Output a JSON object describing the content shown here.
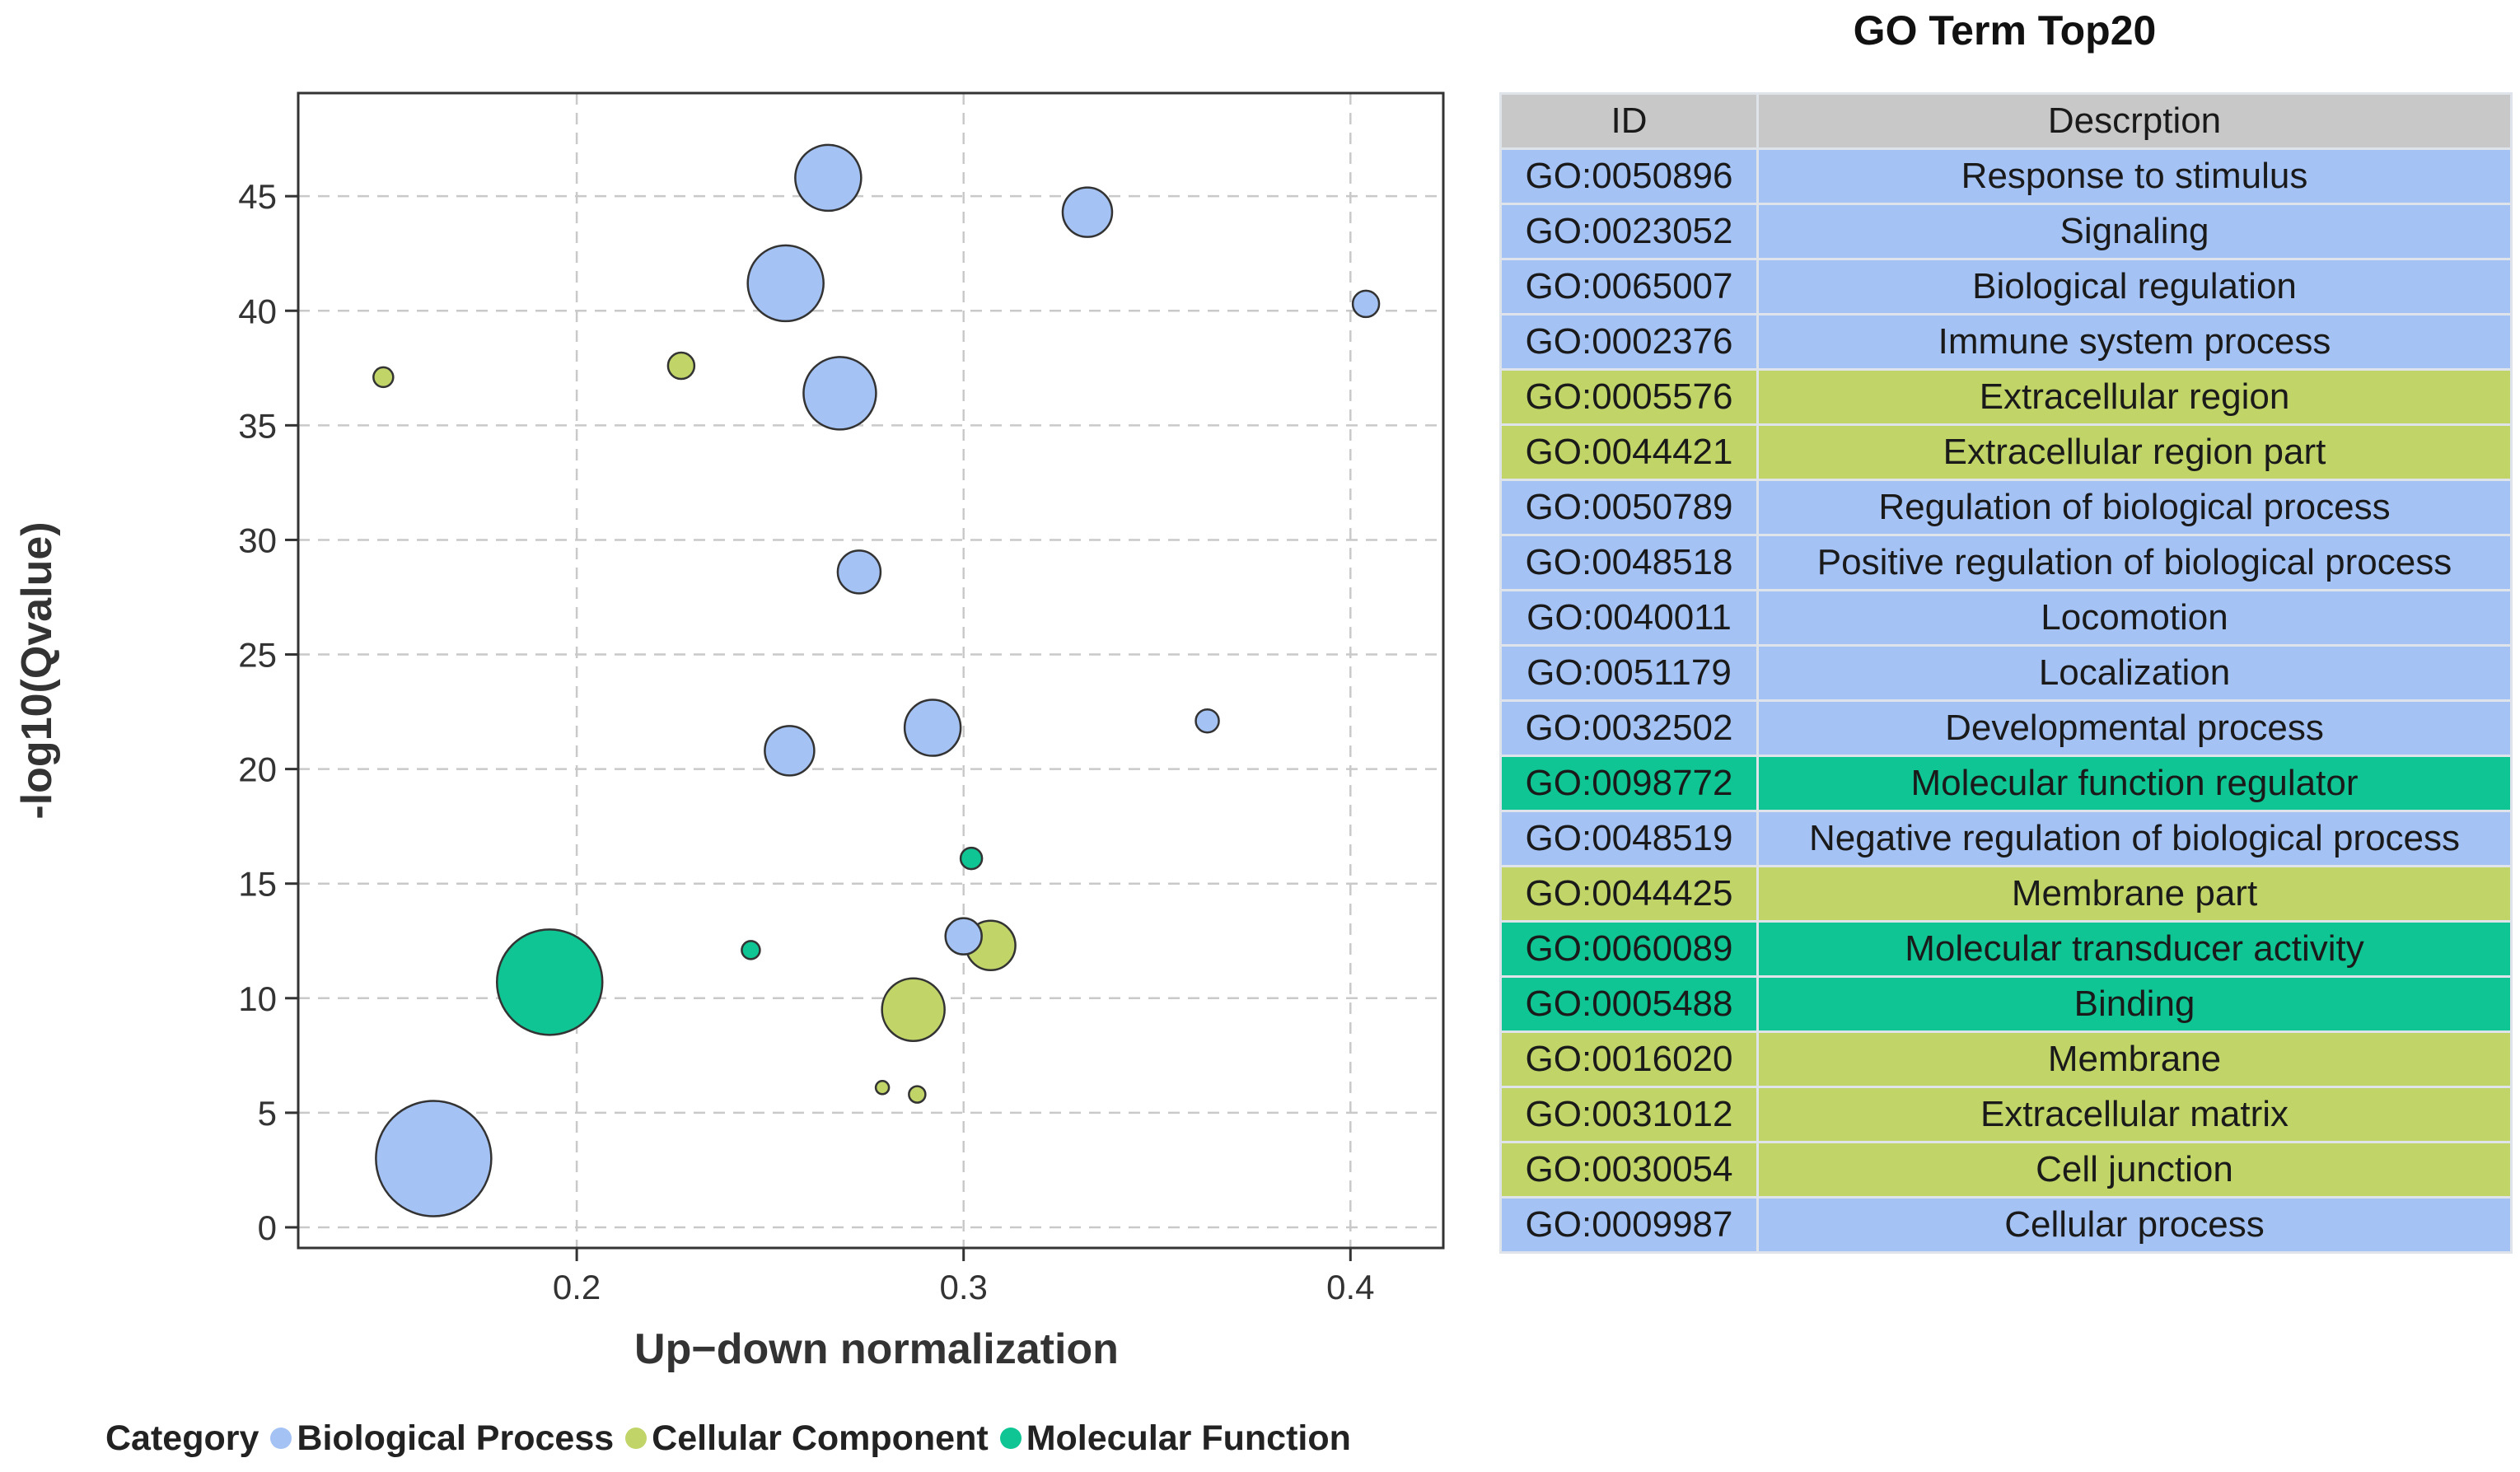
{
  "chart_data": {
    "type": "scatter",
    "title": "",
    "xlabel": "Up−down normalization",
    "ylabel": "-log10(Qvalue)",
    "xlim": [
      0.128,
      0.424
    ],
    "ylim": [
      -0.9,
      49.5
    ],
    "xticks": [
      0.2,
      0.3,
      0.4
    ],
    "xtick_labels": [
      "0.2",
      "0.3",
      "0.4"
    ],
    "yticks": [
      0,
      5,
      10,
      15,
      20,
      25,
      30,
      35,
      40,
      45
    ],
    "ytick_labels": [
      "0",
      "5",
      "10",
      "15",
      "20",
      "25",
      "30",
      "35",
      "40",
      "45"
    ],
    "grid": true,
    "legend_position": "bottom",
    "legend_title": "Category",
    "categories": [
      {
        "name": "Biological Process",
        "color": "#a4c2f4"
      },
      {
        "name": "Cellular Component",
        "color": "#c0d468"
      },
      {
        "name": "Molecular Function",
        "color": "#0ec593"
      }
    ],
    "points": [
      {
        "x": 0.265,
        "y": 45.8,
        "size": 40,
        "category": "Biological Process"
      },
      {
        "x": 0.332,
        "y": 44.3,
        "size": 30,
        "category": "Biological Process"
      },
      {
        "x": 0.254,
        "y": 41.2,
        "size": 46,
        "category": "Biological Process"
      },
      {
        "x": 0.404,
        "y": 40.3,
        "size": 16,
        "category": "Biological Process"
      },
      {
        "x": 0.15,
        "y": 37.1,
        "size": 12,
        "category": "Cellular Component"
      },
      {
        "x": 0.227,
        "y": 37.6,
        "size": 16,
        "category": "Cellular Component"
      },
      {
        "x": 0.268,
        "y": 36.4,
        "size": 44,
        "category": "Biological Process"
      },
      {
        "x": 0.273,
        "y": 28.6,
        "size": 26,
        "category": "Biological Process"
      },
      {
        "x": 0.292,
        "y": 21.8,
        "size": 34,
        "category": "Biological Process"
      },
      {
        "x": 0.363,
        "y": 22.1,
        "size": 14,
        "category": "Biological Process"
      },
      {
        "x": 0.255,
        "y": 20.8,
        "size": 30,
        "category": "Biological Process"
      },
      {
        "x": 0.302,
        "y": 16.1,
        "size": 13,
        "category": "Molecular Function"
      },
      {
        "x": 0.3,
        "y": 12.7,
        "size": 22,
        "category": "Biological Process"
      },
      {
        "x": 0.307,
        "y": 12.3,
        "size": 30,
        "category": "Cellular Component"
      },
      {
        "x": 0.245,
        "y": 12.1,
        "size": 11,
        "category": "Molecular Function"
      },
      {
        "x": 0.193,
        "y": 10.7,
        "size": 64,
        "category": "Molecular Function"
      },
      {
        "x": 0.287,
        "y": 9.5,
        "size": 38,
        "category": "Cellular Component"
      },
      {
        "x": 0.279,
        "y": 6.1,
        "size": 8,
        "category": "Cellular Component"
      },
      {
        "x": 0.288,
        "y": 5.8,
        "size": 10,
        "category": "Cellular Component"
      },
      {
        "x": 0.163,
        "y": 3.0,
        "size": 70,
        "category": "Biological Process"
      }
    ]
  },
  "legend": {
    "title": "Category",
    "items": [
      {
        "label": "Biological Process",
        "color": "#a4c2f4"
      },
      {
        "label": "Cellular Component",
        "color": "#c0d468"
      },
      {
        "label": "Molecular Function",
        "color": "#0ec593"
      }
    ]
  },
  "go_table": {
    "title": "GO Term Top20",
    "headers": {
      "id": "ID",
      "desc": "Descrption"
    },
    "header_color": "#c8c8c8",
    "rows": [
      {
        "id": "GO:0050896",
        "desc": "Response to stimulus",
        "category": "Biological Process"
      },
      {
        "id": "GO:0023052",
        "desc": "Signaling",
        "category": "Biological Process"
      },
      {
        "id": "GO:0065007",
        "desc": "Biological regulation",
        "category": "Biological Process"
      },
      {
        "id": "GO:0002376",
        "desc": "Immune system process",
        "category": "Biological Process"
      },
      {
        "id": "GO:0005576",
        "desc": "Extracellular region",
        "category": "Cellular Component"
      },
      {
        "id": "GO:0044421",
        "desc": "Extracellular region part",
        "category": "Cellular Component"
      },
      {
        "id": "GO:0050789",
        "desc": "Regulation of biological process",
        "category": "Biological Process"
      },
      {
        "id": "GO:0048518",
        "desc": "Positive regulation of biological process",
        "category": "Biological Process"
      },
      {
        "id": "GO:0040011",
        "desc": "Locomotion",
        "category": "Biological Process"
      },
      {
        "id": "GO:0051179",
        "desc": "Localization",
        "category": "Biological Process"
      },
      {
        "id": "GO:0032502",
        "desc": "Developmental process",
        "category": "Biological Process"
      },
      {
        "id": "GO:0098772",
        "desc": "Molecular function regulator",
        "category": "Molecular Function"
      },
      {
        "id": "GO:0048519",
        "desc": "Negative regulation of biological process",
        "category": "Biological Process"
      },
      {
        "id": "GO:0044425",
        "desc": "Membrane part",
        "category": "Cellular Component"
      },
      {
        "id": "GO:0060089",
        "desc": "Molecular transducer activity",
        "category": "Molecular Function"
      },
      {
        "id": "GO:0005488",
        "desc": "Binding",
        "category": "Molecular Function"
      },
      {
        "id": "GO:0016020",
        "desc": "Membrane",
        "category": "Cellular Component"
      },
      {
        "id": "GO:0031012",
        "desc": "Extracellular matrix",
        "category": "Cellular Component"
      },
      {
        "id": "GO:0030054",
        "desc": "Cell junction",
        "category": "Cellular Component"
      },
      {
        "id": "GO:0009987",
        "desc": "Cellular process",
        "category": "Biological Process"
      }
    ]
  }
}
